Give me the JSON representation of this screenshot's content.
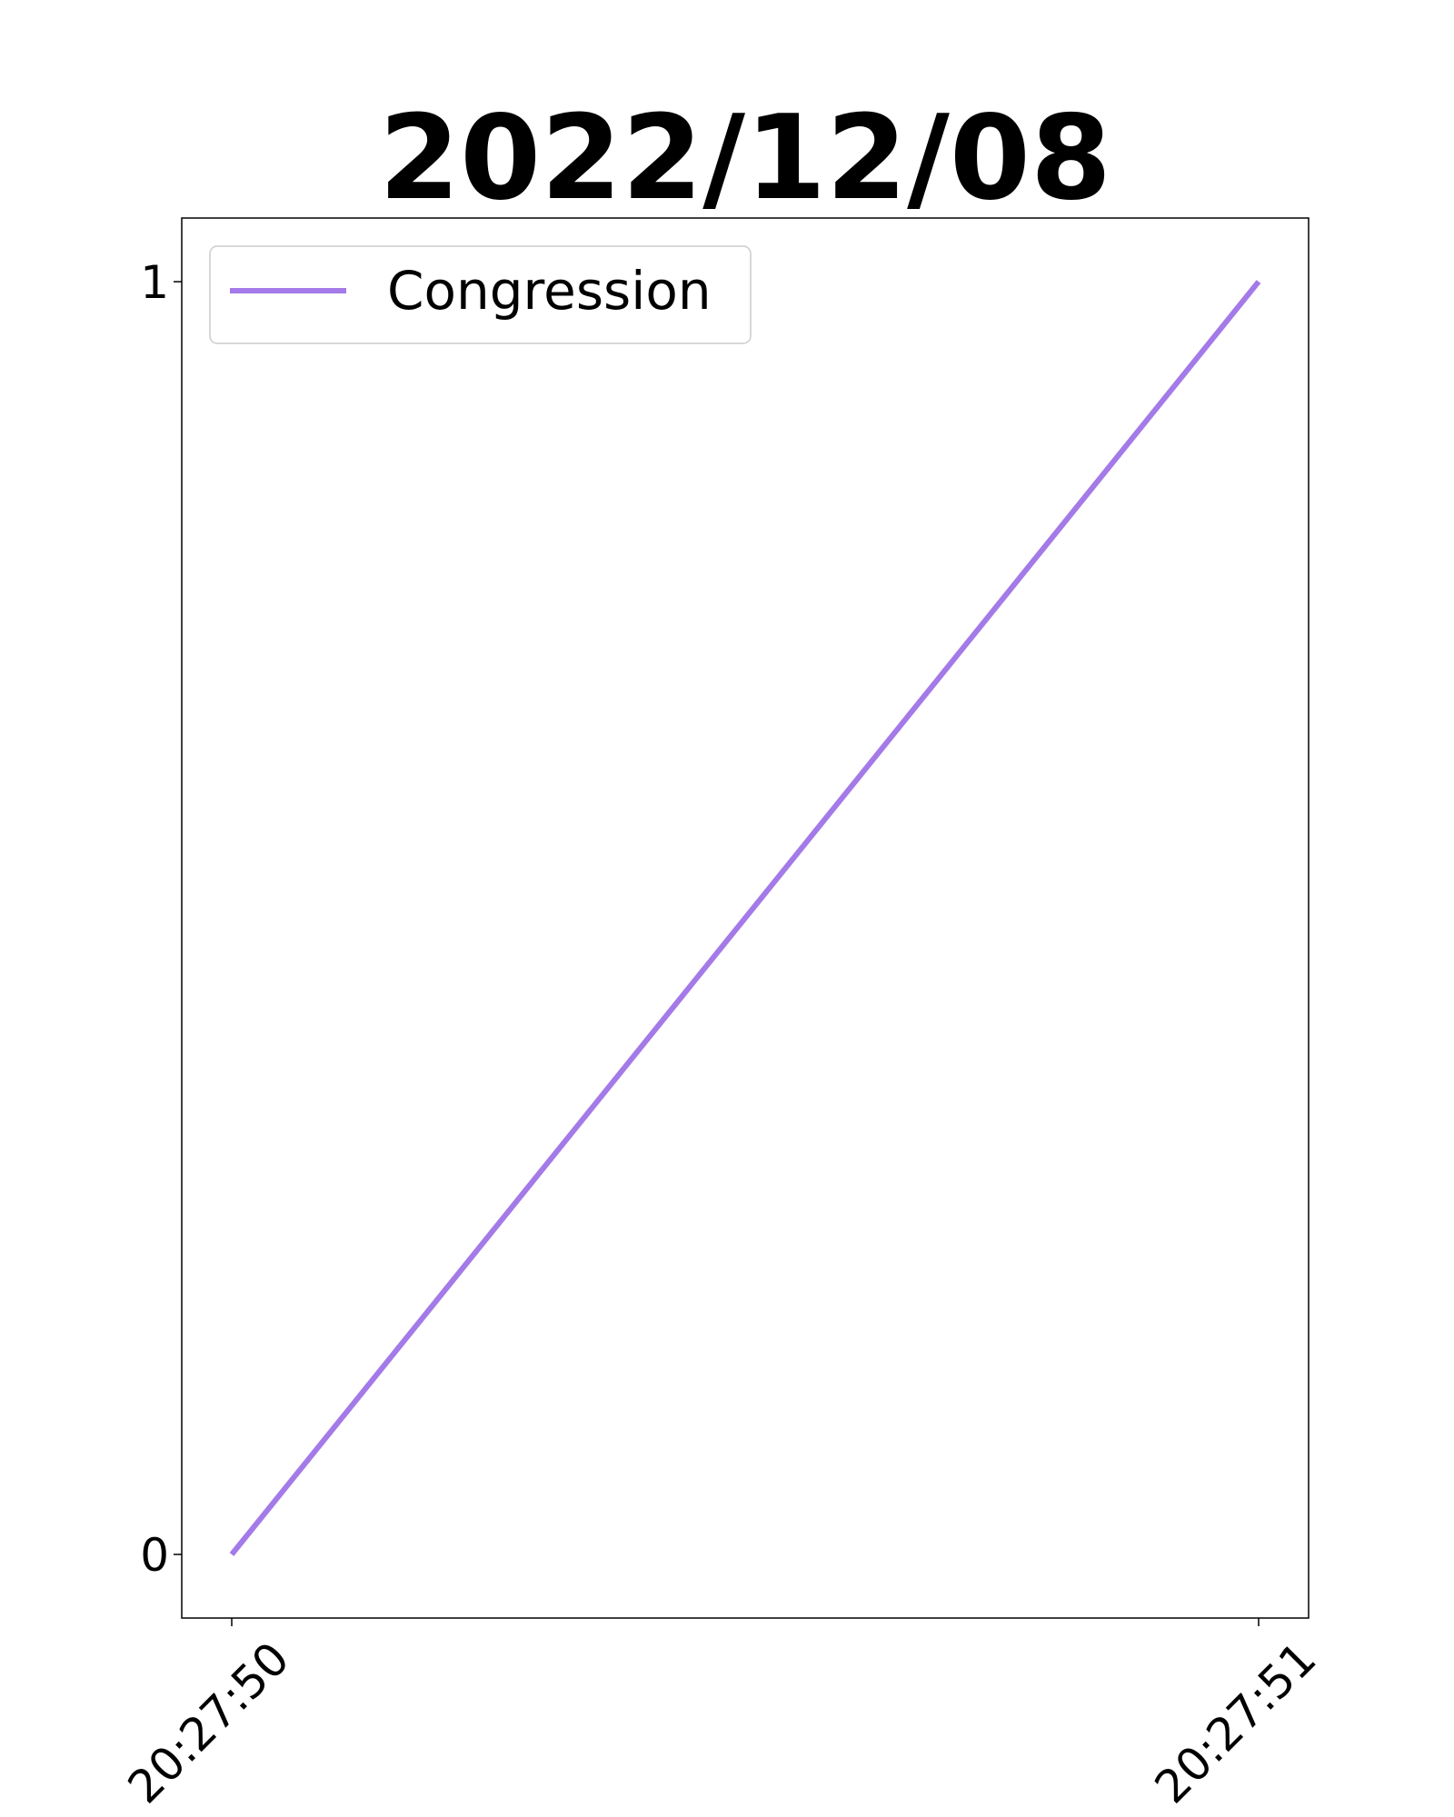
{
  "chart_data": {
    "type": "line",
    "title": "2022/12/08",
    "xlabel": "",
    "ylabel": "",
    "x": [
      "20:27:50",
      "20:27:51"
    ],
    "x_tick_labels": [
      "20:27:50",
      "20:27:51"
    ],
    "y_ticks": [
      0,
      1
    ],
    "y_tick_labels": [
      "0",
      "1"
    ],
    "ylim": [
      -0.05,
      1.05
    ],
    "grid": false,
    "legend_position": "top-left",
    "series": [
      {
        "name": "Congression",
        "color": "#a47ae8",
        "values": [
          0,
          1
        ]
      }
    ]
  }
}
